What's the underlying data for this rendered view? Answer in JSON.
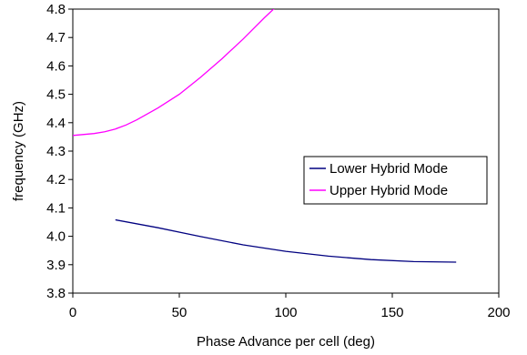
{
  "chart_data": {
    "type": "line",
    "title": "",
    "xlabel": "Phase Advance per cell (deg)",
    "ylabel": "frequency (GHz)",
    "xlim": [
      0,
      200
    ],
    "ylim": [
      3.8,
      4.8
    ],
    "xticks": [
      0,
      50,
      100,
      150,
      200
    ],
    "xtick_labels": [
      "0",
      "50",
      "100",
      "150",
      "200"
    ],
    "yticks": [
      3.8,
      3.9,
      4.0,
      4.1,
      4.2,
      4.3,
      4.4,
      4.5,
      4.6,
      4.7,
      4.8
    ],
    "ytick_labels": [
      "3.8",
      "3.9",
      "4.0",
      "4.1",
      "4.2",
      "4.3",
      "4.4",
      "4.5",
      "4.6",
      "4.7",
      "4.8"
    ],
    "grid": false,
    "legend_position": "right",
    "series": [
      {
        "name": "Lower Hybrid Mode",
        "color": "#000080",
        "x": [
          20,
          40,
          60,
          80,
          100,
          120,
          140,
          160,
          180
        ],
        "y": [
          4.058,
          4.03,
          3.999,
          3.97,
          3.947,
          3.93,
          3.918,
          3.911,
          3.909
        ]
      },
      {
        "name": "Upper Hybrid Mode",
        "color": "#ff00ff",
        "x": [
          0,
          10,
          15,
          20,
          25,
          30,
          40,
          50,
          60,
          70,
          80,
          90,
          95
        ],
        "y": [
          4.355,
          4.362,
          4.368,
          4.378,
          4.392,
          4.41,
          4.452,
          4.5,
          4.56,
          4.625,
          4.695,
          4.77,
          4.805
        ]
      }
    ]
  }
}
